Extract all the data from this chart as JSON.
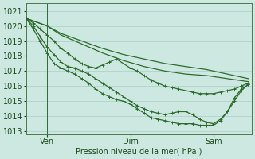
{
  "bg_color": "#cce8e0",
  "grid_color": "#b8d8d0",
  "line_color": "#2d6b2d",
  "xlabel": "Pression niveau de la mer( hPa )",
  "ylim": [
    1012.8,
    1021.5
  ],
  "yticks": [
    1013,
    1014,
    1015,
    1016,
    1017,
    1018,
    1019,
    1020,
    1021
  ],
  "xtick_labels": [
    "Ven",
    "Dim",
    "Sam"
  ],
  "xtick_positions": [
    6,
    30,
    54
  ],
  "vline_positions": [
    6,
    30,
    54
  ],
  "xlim": [
    0,
    65
  ],
  "series_no_markers": [
    [
      0,
      1020.5,
      6,
      1020.0,
      10,
      1019.5,
      16,
      1019.0,
      22,
      1018.5,
      28,
      1018.1,
      34,
      1017.8,
      40,
      1017.5,
      46,
      1017.3,
      52,
      1017.1,
      58,
      1016.8,
      64,
      1016.5
    ],
    [
      0,
      1020.5,
      6,
      1020.0,
      10,
      1019.4,
      16,
      1018.8,
      22,
      1018.2,
      28,
      1017.7,
      34,
      1017.3,
      40,
      1017.0,
      46,
      1016.8,
      52,
      1016.7,
      58,
      1016.5,
      64,
      1016.3
    ]
  ],
  "series_with_markers": [
    [
      [
        0,
        1020.5
      ],
      [
        2,
        1020.2
      ],
      [
        4,
        1019.8
      ],
      [
        6,
        1019.4
      ],
      [
        8,
        1019.0
      ],
      [
        10,
        1018.5
      ],
      [
        12,
        1018.2
      ],
      [
        14,
        1017.8
      ],
      [
        16,
        1017.5
      ],
      [
        18,
        1017.3
      ],
      [
        20,
        1017.2
      ],
      [
        22,
        1017.4
      ],
      [
        24,
        1017.6
      ],
      [
        26,
        1017.8
      ],
      [
        28,
        1017.5
      ],
      [
        30,
        1017.2
      ],
      [
        32,
        1017.0
      ],
      [
        34,
        1016.7
      ],
      [
        36,
        1016.4
      ],
      [
        38,
        1016.2
      ],
      [
        40,
        1016.0
      ],
      [
        42,
        1015.9
      ],
      [
        44,
        1015.8
      ],
      [
        46,
        1015.7
      ],
      [
        48,
        1015.6
      ],
      [
        50,
        1015.5
      ],
      [
        52,
        1015.5
      ],
      [
        54,
        1015.5
      ],
      [
        56,
        1015.6
      ],
      [
        58,
        1015.7
      ],
      [
        60,
        1015.8
      ],
      [
        62,
        1016.0
      ],
      [
        64,
        1016.2
      ]
    ],
    [
      [
        0,
        1020.5
      ],
      [
        2,
        1020.0
      ],
      [
        4,
        1019.3
      ],
      [
        6,
        1018.6
      ],
      [
        8,
        1018.1
      ],
      [
        10,
        1017.6
      ],
      [
        12,
        1017.3
      ],
      [
        14,
        1017.2
      ],
      [
        16,
        1017.0
      ],
      [
        18,
        1016.8
      ],
      [
        20,
        1016.5
      ],
      [
        22,
        1016.2
      ],
      [
        24,
        1015.9
      ],
      [
        26,
        1015.6
      ],
      [
        28,
        1015.3
      ],
      [
        30,
        1015.0
      ],
      [
        32,
        1014.7
      ],
      [
        34,
        1014.5
      ],
      [
        36,
        1014.3
      ],
      [
        38,
        1014.2
      ],
      [
        40,
        1014.1
      ],
      [
        42,
        1014.2
      ],
      [
        44,
        1014.3
      ],
      [
        46,
        1014.3
      ],
      [
        48,
        1014.1
      ],
      [
        50,
        1013.8
      ],
      [
        52,
        1013.6
      ],
      [
        54,
        1013.5
      ],
      [
        56,
        1013.8
      ],
      [
        58,
        1014.3
      ],
      [
        60,
        1015.0
      ],
      [
        62,
        1015.7
      ],
      [
        64,
        1016.1
      ]
    ],
    [
      [
        0,
        1020.5
      ],
      [
        2,
        1019.8
      ],
      [
        4,
        1019.0
      ],
      [
        6,
        1018.2
      ],
      [
        8,
        1017.5
      ],
      [
        10,
        1017.2
      ],
      [
        12,
        1017.0
      ],
      [
        14,
        1016.8
      ],
      [
        16,
        1016.5
      ],
      [
        18,
        1016.2
      ],
      [
        20,
        1015.8
      ],
      [
        22,
        1015.5
      ],
      [
        24,
        1015.3
      ],
      [
        26,
        1015.1
      ],
      [
        28,
        1015.0
      ],
      [
        30,
        1014.8
      ],
      [
        32,
        1014.5
      ],
      [
        34,
        1014.2
      ],
      [
        36,
        1013.9
      ],
      [
        38,
        1013.8
      ],
      [
        40,
        1013.7
      ],
      [
        42,
        1013.6
      ],
      [
        44,
        1013.5
      ],
      [
        46,
        1013.5
      ],
      [
        48,
        1013.5
      ],
      [
        50,
        1013.4
      ],
      [
        52,
        1013.4
      ],
      [
        54,
        1013.4
      ],
      [
        56,
        1013.7
      ],
      [
        58,
        1014.3
      ],
      [
        60,
        1015.2
      ],
      [
        62,
        1015.8
      ],
      [
        64,
        1016.1
      ]
    ]
  ]
}
